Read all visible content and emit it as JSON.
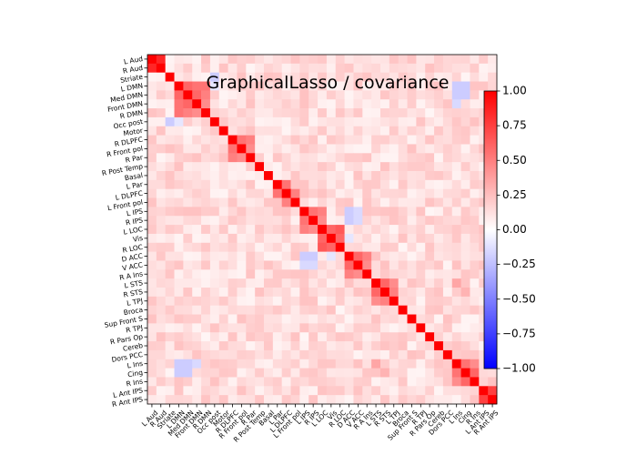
{
  "chart_data": {
    "type": "heatmap",
    "title": "GraphicalLasso / covariance",
    "labels": [
      "L Aud",
      "R Aud",
      "Striate",
      "L DMN",
      "Med DMN",
      "Front DMN",
      "R DMN",
      "Occ post",
      "Motor",
      "R DLPFC",
      "R Front pol",
      "R Par",
      "R Post Temp",
      "Basal",
      "L Par",
      "L DLPFC",
      "L Front pol",
      "L IPS",
      "R IPS",
      "L LOC",
      "Vis",
      "R LOC",
      "D ACC",
      "V ACC",
      "R A Ins",
      "L STS",
      "R STS",
      "L TPJ",
      "Broca",
      "Sup Front S",
      "R TPJ",
      "R Pars Op",
      "Cereb",
      "Dors PCC",
      "L Ins",
      "Cing",
      "R Ins",
      "L Ant IPS",
      "R Ant IPS"
    ],
    "diagonal": 1.0,
    "colormap": "bwr",
    "vmin": -1.0,
    "vmax": 1.0,
    "colorbar_ticks": [
      "1.00",
      "0.75",
      "0.50",
      "0.25",
      "0.00",
      "−0.25",
      "−0.50",
      "−0.75",
      "−1.00"
    ],
    "colorbar_tick_values": [
      1.0,
      0.75,
      0.5,
      0.25,
      0.0,
      -0.25,
      -0.5,
      -0.75,
      -1.0
    ],
    "approx_values": [
      {
        "i": "L Aud",
        "j": "R Aud",
        "v": 0.85
      },
      {
        "i": "L DMN",
        "j": "Med DMN",
        "v": 0.6
      },
      {
        "i": "L DMN",
        "j": "Front DMN",
        "v": 0.55
      },
      {
        "i": "Med DMN",
        "j": "Front DMN",
        "v": 0.6
      },
      {
        "i": "L DMN",
        "j": "R DMN",
        "v": 0.55
      },
      {
        "i": "Med DMN",
        "j": "R DMN",
        "v": 0.5
      },
      {
        "i": "Front DMN",
        "j": "R DMN",
        "v": 0.45
      },
      {
        "i": "R DLPFC",
        "j": "R Front pol",
        "v": 0.55
      },
      {
        "i": "R DLPFC",
        "j": "R Par",
        "v": 0.5
      },
      {
        "i": "R Front pol",
        "j": "R Par",
        "v": 0.45
      },
      {
        "i": "L Par",
        "j": "L DLPFC",
        "v": 0.55
      },
      {
        "i": "L DLPFC",
        "j": "L Front pol",
        "v": 0.5
      },
      {
        "i": "L IPS",
        "j": "R IPS",
        "v": 0.55
      },
      {
        "i": "L IPS",
        "j": "L LOC",
        "v": 0.5
      },
      {
        "i": "R IPS",
        "j": "L LOC",
        "v": 0.45
      },
      {
        "i": "L LOC",
        "j": "Vis",
        "v": 0.6
      },
      {
        "i": "L LOC",
        "j": "R LOC",
        "v": 0.65
      },
      {
        "i": "Vis",
        "j": "R LOC",
        "v": 0.6
      },
      {
        "i": "D ACC",
        "j": "V ACC",
        "v": 0.6
      },
      {
        "i": "D ACC",
        "j": "R A Ins",
        "v": 0.5
      },
      {
        "i": "V ACC",
        "j": "R A Ins",
        "v": 0.45
      },
      {
        "i": "L STS",
        "j": "R STS",
        "v": 0.6
      },
      {
        "i": "L STS",
        "j": "L TPJ",
        "v": 0.45
      },
      {
        "i": "R STS",
        "j": "L TPJ",
        "v": 0.5
      },
      {
        "i": "L Ins",
        "j": "Cing",
        "v": 0.55
      },
      {
        "i": "Cing",
        "j": "R Ins",
        "v": 0.6
      },
      {
        "i": "L Ins",
        "j": "R Ins",
        "v": 0.45
      },
      {
        "i": "L Ant IPS",
        "j": "R Ant IPS",
        "v": 0.75
      },
      {
        "i": "L IPS",
        "j": "D ACC",
        "v": -0.2
      },
      {
        "i": "L IPS",
        "j": "V ACC",
        "v": -0.15
      },
      {
        "i": "R IPS",
        "j": "D ACC",
        "v": -0.2
      },
      {
        "i": "R IPS",
        "j": "V ACC",
        "v": -0.15
      },
      {
        "i": "L DMN",
        "j": "L Ins",
        "v": -0.2
      },
      {
        "i": "L DMN",
        "j": "Cing",
        "v": -0.2
      },
      {
        "i": "Med DMN",
        "j": "L Ins",
        "v": -0.2
      },
      {
        "i": "Med DMN",
        "j": "Cing",
        "v": -0.2
      },
      {
        "i": "Front DMN",
        "j": "L Ins",
        "v": -0.15
      },
      {
        "i": "Striate",
        "j": "Occ post",
        "v": -0.2
      },
      {
        "i": "L DMN",
        "j": "Occ post",
        "v": -0.1
      },
      {
        "i": "Vis",
        "j": "D ACC",
        "v": -0.1
      },
      {
        "i": "L STS",
        "j": "L Ins",
        "v": 0.35
      },
      {
        "i": "R STS",
        "j": "Cing",
        "v": 0.3
      }
    ]
  }
}
